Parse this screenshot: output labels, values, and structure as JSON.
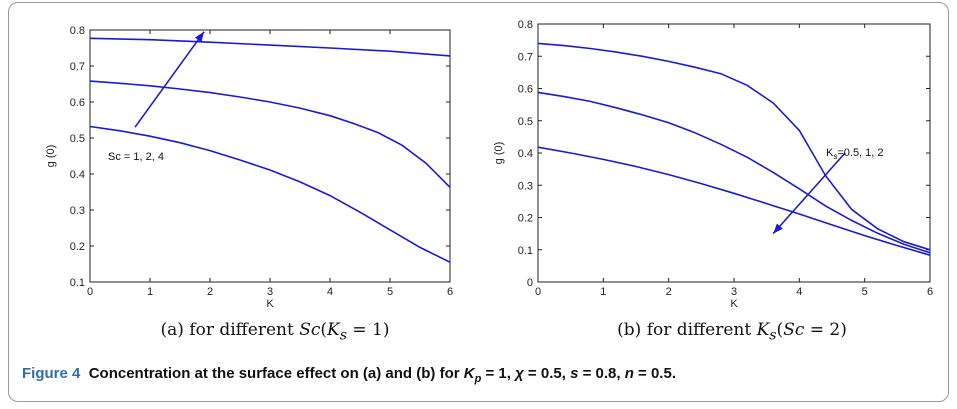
{
  "caption": {
    "label": "Figure 4",
    "text_before": "Concentration at the surface effect on (a) and (b) for ",
    "kp_symbol": "K",
    "kp_sub": "p",
    "kp_value": " = 1, ",
    "chi_symbol": "χ",
    "chi_value": " = 0.5, ",
    "s_symbol": "s",
    "s_value": " = 0.8, ",
    "n_symbol": "n",
    "n_value": " = 0.5."
  },
  "subcaptions": [
    {
      "prefix": "(a)  for different ",
      "var": "Sc",
      "rest_open": "(",
      "var2": "K",
      "var2_sub": "s",
      "rest_close": " = 1)"
    },
    {
      "prefix": "(b)  for different ",
      "var": "K",
      "var_sub": "s",
      "rest_open": "(",
      "var2": "Sc",
      "rest_close": " = 2)"
    }
  ],
  "chart_data": [
    {
      "type": "line",
      "xlabel": "K",
      "ylabel": "g (0)",
      "xlim": [
        0,
        6
      ],
      "ylim": [
        0.1,
        0.8
      ],
      "xticks": [
        0,
        1,
        2,
        3,
        4,
        5,
        6
      ],
      "yticks": [
        0.1,
        0.2,
        0.3,
        0.4,
        0.5,
        0.6,
        0.7,
        0.8
      ],
      "grid": false,
      "line_color": "#1a1ad6",
      "annotation": {
        "text": "Sc = 1, 2, 4",
        "arrow_from": [
          0.75,
          0.53
        ],
        "arrow_to": [
          1.9,
          0.795
        ]
      },
      "series": [
        {
          "x": [
            0,
            1,
            2,
            3,
            4,
            5,
            6
          ],
          "y": [
            0.777,
            0.773,
            0.766,
            0.758,
            0.75,
            0.741,
            0.728
          ]
        },
        {
          "x": [
            0,
            0.5,
            1,
            1.5,
            2,
            2.5,
            3,
            3.5,
            4,
            4.4,
            4.8,
            5.2,
            5.6,
            6
          ],
          "y": [
            0.658,
            0.652,
            0.645,
            0.636,
            0.626,
            0.614,
            0.6,
            0.583,
            0.562,
            0.54,
            0.515,
            0.48,
            0.43,
            0.363
          ]
        },
        {
          "x": [
            0,
            0.5,
            1,
            1.5,
            2,
            2.5,
            3,
            3.5,
            4,
            4.5,
            5,
            5.5,
            6
          ],
          "y": [
            0.532,
            0.52,
            0.505,
            0.487,
            0.465,
            0.439,
            0.411,
            0.378,
            0.34,
            0.294,
            0.245,
            0.196,
            0.155
          ]
        }
      ]
    },
    {
      "type": "line",
      "xlabel": "K",
      "ylabel": "g (0)",
      "xlim": [
        0,
        6
      ],
      "ylim": [
        0,
        0.8
      ],
      "xticks": [
        0,
        1,
        2,
        3,
        4,
        5,
        6
      ],
      "yticks": [
        0,
        0.1,
        0.2,
        0.3,
        0.4,
        0.5,
        0.6,
        0.7,
        0.8
      ],
      "grid": false,
      "line_color": "#1a1ad6",
      "annotation": {
        "text_main": "K",
        "text_sub": "s",
        "text_rest": "=0.5, 1, 2",
        "arrow_from": [
          4.7,
          0.4
        ],
        "arrow_to": [
          3.6,
          0.15
        ]
      },
      "series": [
        {
          "x": [
            0,
            0.4,
            0.8,
            1.2,
            1.6,
            2,
            2.4,
            2.8,
            3.2,
            3.6,
            4,
            4.4,
            4.8,
            5.2,
            5.6,
            6
          ],
          "y": [
            0.74,
            0.733,
            0.724,
            0.713,
            0.7,
            0.684,
            0.666,
            0.646,
            0.61,
            0.555,
            0.47,
            0.33,
            0.225,
            0.165,
            0.125,
            0.1
          ]
        },
        {
          "x": [
            0,
            0.4,
            0.8,
            1.2,
            1.6,
            2,
            2.4,
            2.8,
            3.2,
            3.6,
            4,
            4.4,
            4.8,
            5.2,
            5.6,
            6
          ],
          "y": [
            0.588,
            0.575,
            0.56,
            0.54,
            0.518,
            0.494,
            0.463,
            0.427,
            0.387,
            0.34,
            0.289,
            0.236,
            0.191,
            0.151,
            0.117,
            0.091
          ]
        },
        {
          "x": [
            0,
            0.5,
            1,
            1.5,
            2,
            2.5,
            3,
            3.5,
            4,
            4.5,
            5,
            5.5,
            6
          ],
          "y": [
            0.418,
            0.4,
            0.38,
            0.358,
            0.333,
            0.305,
            0.275,
            0.243,
            0.211,
            0.177,
            0.144,
            0.113,
            0.083
          ]
        }
      ]
    }
  ]
}
